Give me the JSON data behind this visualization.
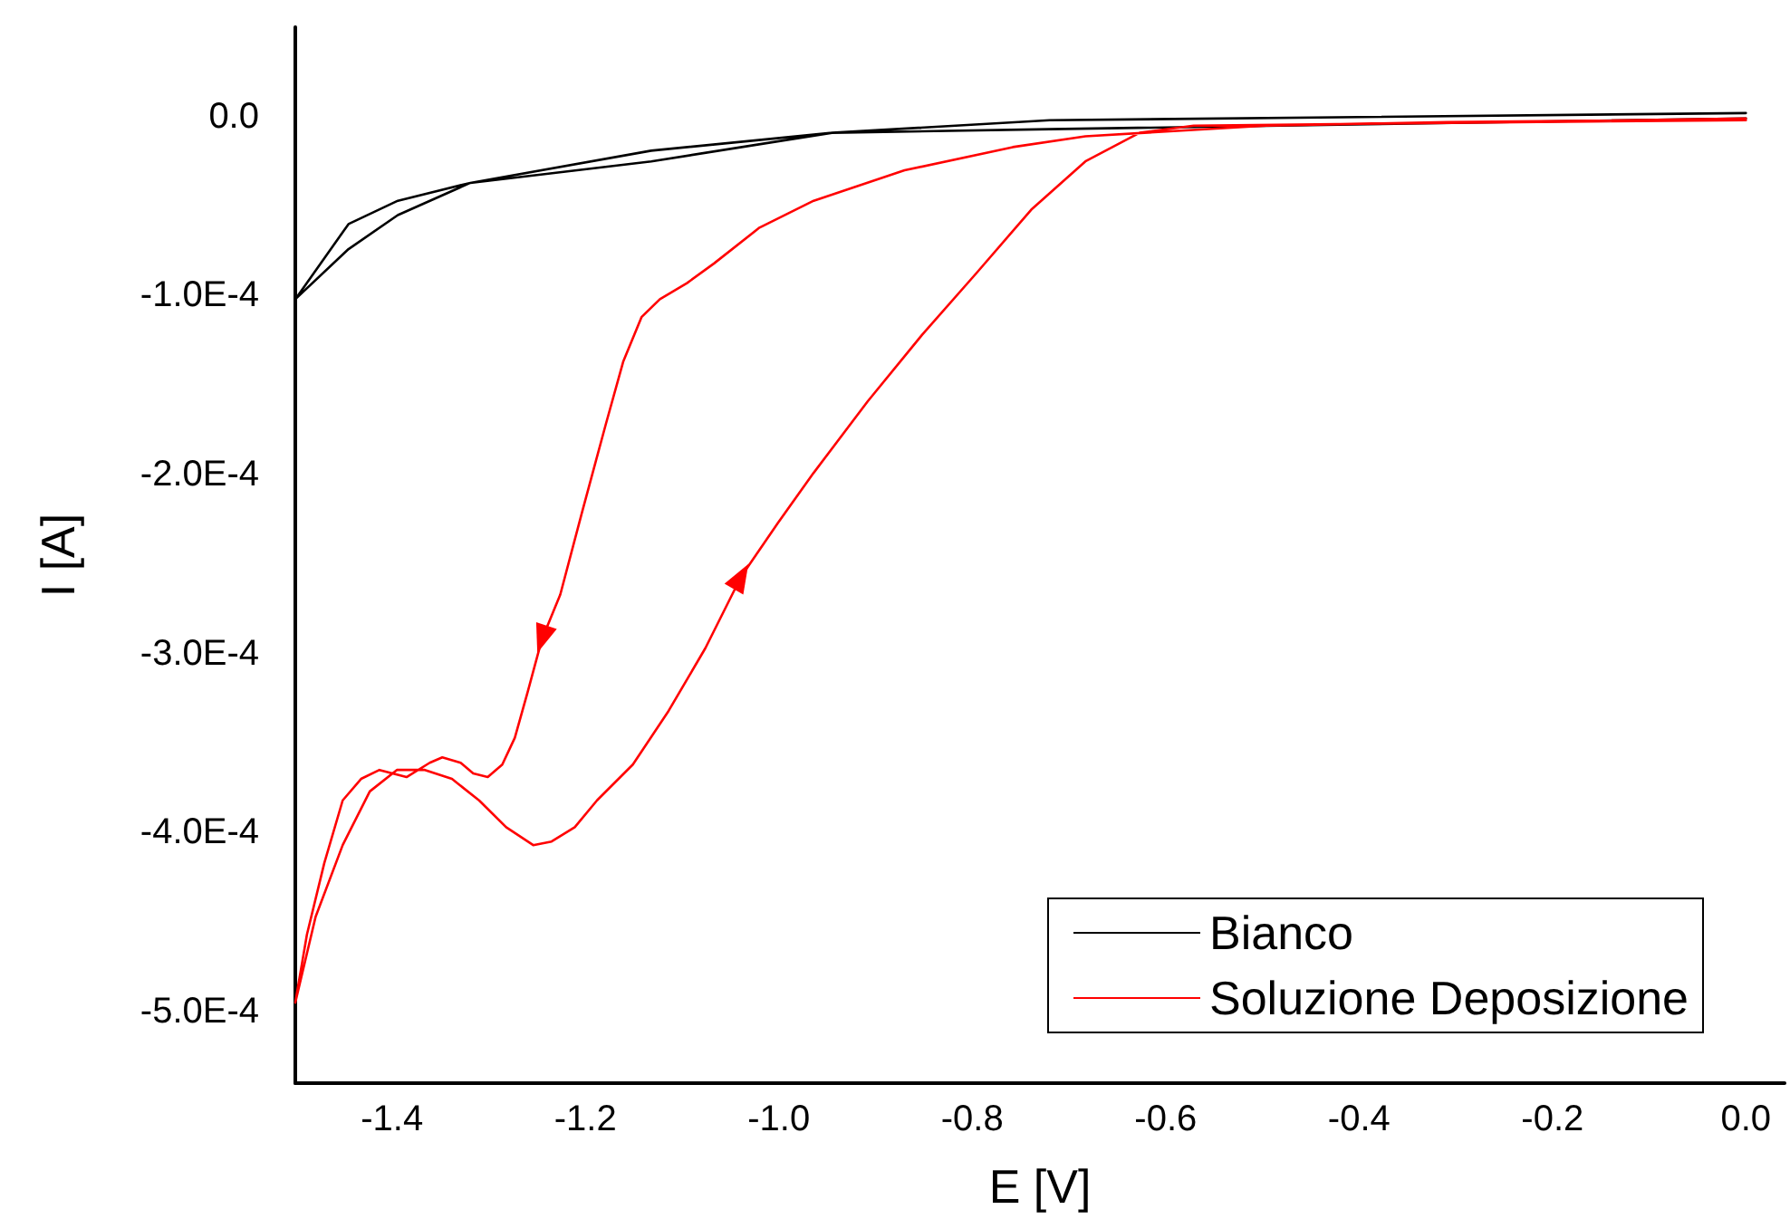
{
  "chart_data": {
    "type": "line",
    "xlabel": "E [V]",
    "ylabel": "I [A]",
    "xlim": [
      -1.5,
      0.04
    ],
    "xticks": [
      -1.4,
      -1.2,
      {
        "value": -1.0,
        "label": "-1.0"
      },
      -0.8,
      -0.6,
      -0.4,
      -0.2,
      {
        "value": 0.0,
        "label": "0.0"
      }
    ],
    "ylim": [
      -0.00054,
      5e-05
    ],
    "yticks": [
      {
        "value": -0.0005,
        "label": "-5.0E-4"
      },
      {
        "value": -0.0004,
        "label": "-4.0E-4"
      },
      {
        "value": -0.0003,
        "label": "-3.0E-4"
      },
      {
        "value": -0.0002,
        "label": "-2.0E-4"
      },
      {
        "value": -0.0001,
        "label": "-1.0E-4"
      },
      {
        "value": 0.0,
        "label": "0.0"
      }
    ],
    "grid": false,
    "legend": "bottom right",
    "marker": "none",
    "line_style": "solid",
    "series": [
      {
        "name": "Bianco",
        "color": "#000000",
        "x": [
          0.0,
          -0.72,
          -0.945,
          -1.132,
          -1.319,
          -1.394,
          -1.445,
          -1.5,
          -1.445,
          -1.394,
          -1.319,
          -1.132,
          -0.945,
          -0.72,
          0.0
        ],
        "values": [
          2e-06,
          -2e-06,
          -9e-06,
          -1.9e-05,
          -3.7e-05,
          -4.7e-05,
          -6e-05,
          -0.000102,
          -7.4e-05,
          -5.5e-05,
          -3.7e-05,
          -2.5e-05,
          -9e-06,
          -7e-06,
          -1e-06
        ]
      },
      {
        "name": "Soluzione Deposizione",
        "color": "#ff0000",
        "x": [
          0.0,
          -0.122,
          -0.309,
          -0.496,
          -0.683,
          -0.758,
          -0.87,
          -0.964,
          -1.02,
          -1.067,
          -1.095,
          -1.123,
          -1.142,
          -1.161,
          -1.179,
          -1.204,
          -1.226,
          -1.245,
          -1.26,
          -1.273,
          -1.286,
          -1.301,
          -1.316,
          -1.329,
          -1.348,
          -1.361,
          -1.385,
          -1.413,
          -1.432,
          -1.451,
          -1.47,
          -1.488,
          -1.5,
          -1.479,
          -1.451,
          -1.423,
          -1.395,
          -1.366,
          -1.338,
          -1.31,
          -1.282,
          -1.254,
          -1.235,
          -1.211,
          -1.188,
          -1.151,
          -1.114,
          -1.076,
          -1.039,
          -1.001,
          -0.964,
          -0.908,
          -0.852,
          -0.795,
          -0.739,
          -0.683,
          -0.627,
          -0.571,
          -0.402,
          -0.215,
          0.0
        ],
        "values": [
          -1e-06,
          -2e-06,
          -3e-06,
          -5e-06,
          -1.1e-05,
          -1.7e-05,
          -3e-05,
          -4.7e-05,
          -6.2e-05,
          -8.2e-05,
          -9.3e-05,
          -0.000102,
          -0.000112,
          -0.000137,
          -0.000172,
          -0.000222,
          -0.000267,
          -0.000292,
          -0.000322,
          -0.000347,
          -0.000362,
          -0.000369,
          -0.000367,
          -0.000361,
          -0.000358,
          -0.000361,
          -0.000369,
          -0.000365,
          -0.00037,
          -0.000382,
          -0.000417,
          -0.000457,
          -0.000495,
          -0.000447,
          -0.000407,
          -0.000377,
          -0.000365,
          -0.000365,
          -0.00037,
          -0.000382,
          -0.000397,
          -0.000407,
          -0.000405,
          -0.000397,
          -0.000382,
          -0.000362,
          -0.000332,
          -0.000297,
          -0.000257,
          -0.000227,
          -0.000199,
          -0.000159,
          -0.000122,
          -8.7e-05,
          -5.2e-05,
          -2.5e-05,
          -9e-06,
          -5e-06,
          -4e-06,
          -3e-06,
          -2e-06
        ]
      }
    ]
  }
}
